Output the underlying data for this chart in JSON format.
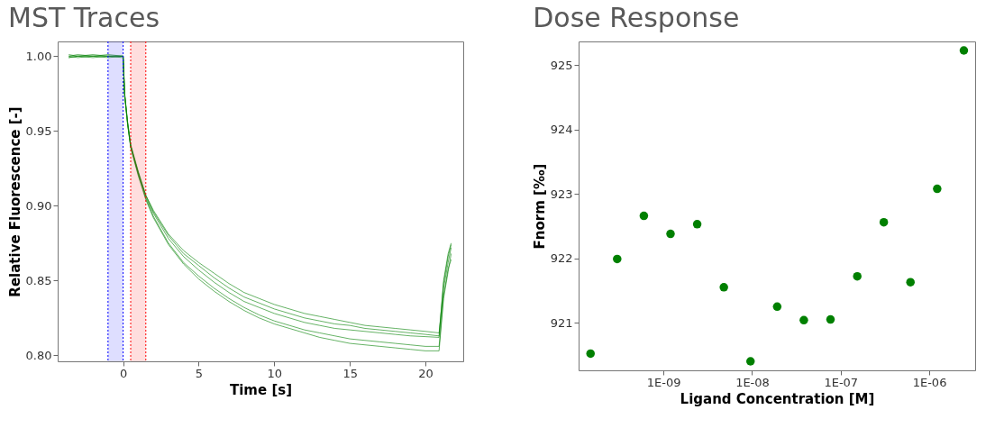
{
  "chart_data": [
    {
      "type": "line",
      "title": "MST Traces",
      "xlabel": "Time [s]",
      "ylabel": "Relative Fluorescence [-]",
      "xlim": [
        -4.33,
        22.5
      ],
      "xticks": [
        0,
        5,
        10,
        15,
        20
      ],
      "ylim": [
        0.796,
        1.0098
      ],
      "yticks": [
        {
          "value": 0.8,
          "label": "0.80"
        },
        {
          "value": 0.85,
          "label": "0.85"
        },
        {
          "value": 0.9,
          "label": "0.90"
        },
        {
          "value": 0.95,
          "label": "0.95"
        },
        {
          "value": 1.0,
          "label": "1.00"
        }
      ],
      "x": [
        -3.6,
        -3,
        -2,
        -1,
        0,
        0.1,
        0.3,
        0.5,
        1,
        1.5,
        2,
        3,
        4,
        5,
        6,
        7,
        8,
        9,
        10,
        11,
        12,
        13,
        14,
        15,
        16,
        17,
        18,
        19,
        20,
        20.9,
        21.2,
        21.5,
        21.7
      ],
      "series": [
        {
          "color": "#008000",
          "values": [
            0.999,
            1.0,
            0.999,
            1.0,
            1.0,
            0.975,
            0.955,
            0.94,
            0.922,
            0.906,
            0.895,
            0.878,
            0.866,
            0.857,
            0.849,
            0.842,
            0.836,
            0.832,
            0.828,
            0.825,
            0.822,
            0.82,
            0.818,
            0.817,
            0.816,
            0.815,
            0.814,
            0.813,
            0.8125,
            0.812,
            0.85,
            0.868,
            0.875
          ]
        },
        {
          "color": "#008000",
          "values": [
            1.001,
            1.0,
            1.001,
            1.0,
            1.0,
            0.975,
            0.956,
            0.941,
            0.923,
            0.907,
            0.897,
            0.881,
            0.87,
            0.862,
            0.855,
            0.848,
            0.842,
            0.838,
            0.834,
            0.831,
            0.828,
            0.826,
            0.824,
            0.822,
            0.82,
            0.819,
            0.818,
            0.817,
            0.816,
            0.815,
            0.845,
            0.862,
            0.872
          ]
        },
        {
          "color": "#008000",
          "values": [
            1.0,
            1.001,
            1.0,
            0.999,
            1.0,
            0.974,
            0.955,
            0.94,
            0.922,
            0.907,
            0.896,
            0.88,
            0.868,
            0.86,
            0.852,
            0.845,
            0.839,
            0.835,
            0.831,
            0.828,
            0.825,
            0.823,
            0.821,
            0.82,
            0.818,
            0.817,
            0.816,
            0.815,
            0.814,
            0.813,
            0.848,
            0.866,
            0.874
          ]
        },
        {
          "color": "#008000",
          "values": [
            1.0,
            0.999,
            1.0,
            1.0,
            0.999,
            0.974,
            0.954,
            0.939,
            0.921,
            0.905,
            0.893,
            0.875,
            0.862,
            0.853,
            0.845,
            0.838,
            0.832,
            0.827,
            0.823,
            0.82,
            0.817,
            0.815,
            0.813,
            0.811,
            0.81,
            0.809,
            0.808,
            0.807,
            0.806,
            0.806,
            0.84,
            0.858,
            0.864
          ]
        },
        {
          "color": "#008000",
          "values": [
            0.999,
            1.0,
            1.0,
            1.001,
            1.0,
            0.974,
            0.954,
            0.939,
            0.92,
            0.904,
            0.892,
            0.874,
            0.861,
            0.851,
            0.843,
            0.836,
            0.83,
            0.825,
            0.821,
            0.818,
            0.815,
            0.812,
            0.81,
            0.808,
            0.807,
            0.806,
            0.805,
            0.804,
            0.803,
            0.803,
            0.838,
            0.856,
            0.868
          ]
        }
      ],
      "bands": [
        {
          "axis": "x",
          "from": -1,
          "to": 0,
          "color": "#0000ff"
        },
        {
          "axis": "x",
          "from": 0.5,
          "to": 1.5,
          "color": "#ff0000"
        }
      ],
      "ref_lines": [
        {
          "axis": "x",
          "value": -1,
          "color": "#0000ff",
          "line_style": "dotted"
        },
        {
          "axis": "x",
          "value": 0,
          "color": "#0000ff",
          "line_style": "dotted"
        },
        {
          "axis": "x",
          "value": 0.5,
          "color": "#ff0000",
          "line_style": "dotted"
        },
        {
          "axis": "x",
          "value": 1.5,
          "color": "#ff0000",
          "line_style": "dotted"
        }
      ],
      "marker": "none",
      "line_style": "solid",
      "grid": false,
      "legend": false
    },
    {
      "type": "scatter",
      "title": "Dose Response",
      "xlabel": "Ligand Concentration [M]",
      "ylabel": "Fnorm [‰]",
      "log": "x",
      "xlim": [
        1.1e-10,
        3.3e-06
      ],
      "xticks": [
        {
          "value": 1e-09,
          "label": "1E-09"
        },
        {
          "value": 1e-08,
          "label": "1E-08"
        },
        {
          "value": 1e-07,
          "label": "1E-07"
        },
        {
          "value": 1e-06,
          "label": "1E-06"
        }
      ],
      "ylim": [
        920.26,
        925.37
      ],
      "yticks": [
        921,
        922,
        923,
        924,
        925
      ],
      "x": [
        1.5e-10,
        3e-10,
        6e-10,
        1.2e-09,
        2.4e-09,
        4.8e-09,
        9.6e-09,
        1.92e-08,
        3.84e-08,
        7.68e-08,
        1.54e-07,
        3.07e-07,
        6.14e-07,
        1.23e-06,
        2.46e-06
      ],
      "series": [
        {
          "color": "#008000",
          "values": [
            920.52,
            921.99,
            922.66,
            922.38,
            922.53,
            921.55,
            920.4,
            921.25,
            921.04,
            921.05,
            921.72,
            922.56,
            921.63,
            923.08,
            925.23
          ]
        }
      ],
      "marker": "circle",
      "grid": false,
      "legend": false
    }
  ]
}
